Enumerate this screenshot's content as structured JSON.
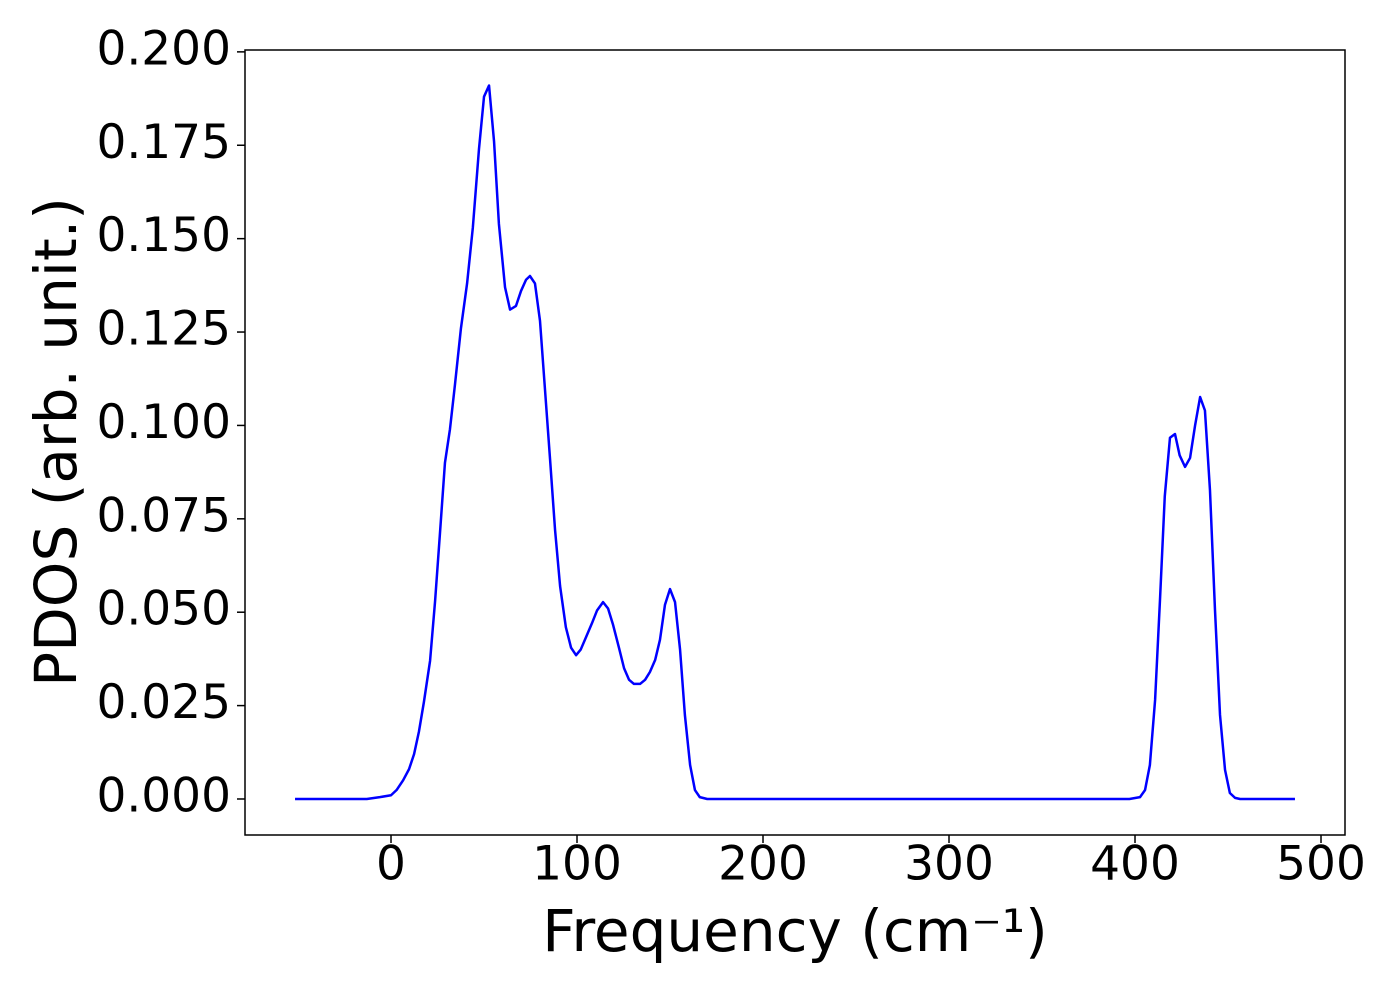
{
  "chart_data": {
    "type": "line",
    "xlabel": "Frequency (cm⁻¹)",
    "ylabel": "PDOS (arb. unit.)",
    "x": [
      -51.6,
      -13,
      -6,
      0,
      3,
      6.5,
      9.7,
      12.4,
      15,
      17.7,
      21,
      23.7,
      26.3,
      29,
      31.7,
      34.4,
      37.6,
      40.9,
      44,
      47.3,
      50,
      52.7,
      55.4,
      58,
      61.3,
      64,
      67.2,
      69.9,
      72.6,
      74.7,
      77.4,
      80.1,
      82.8,
      85.5,
      88.2,
      90.9,
      94,
      96.8,
      99.5,
      102,
      105,
      108,
      110.8,
      114,
      116.7,
      119.4,
      122.6,
      125.3,
      128,
      130.6,
      133.9,
      136.6,
      139.2,
      142,
      144.6,
      147.3,
      150,
      152.7,
      155.4,
      158,
      160.8,
      163.4,
      166,
      170,
      397,
      402.7,
      405.4,
      408,
      410.8,
      413.4,
      416,
      418.8,
      421.5,
      424,
      426.9,
      429.6,
      432.3,
      435,
      437.6,
      440.3,
      443,
      445.7,
      448.4,
      451,
      453.8,
      456.5,
      486
    ],
    "values": [
      0,
      0,
      0.0005,
      0.001,
      0.0024,
      0.005,
      0.008,
      0.012,
      0.018,
      0.026,
      0.037,
      0.053,
      0.071,
      0.09,
      0.099,
      0.111,
      0.126,
      0.138,
      0.153,
      0.174,
      0.188,
      0.191,
      0.176,
      0.154,
      0.137,
      0.131,
      0.132,
      0.136,
      0.139,
      0.14,
      0.138,
      0.128,
      0.1095,
      0.091,
      0.072,
      0.057,
      0.046,
      0.0405,
      0.0385,
      0.04,
      0.0435,
      0.047,
      0.0505,
      0.0527,
      0.051,
      0.0466,
      0.0404,
      0.035,
      0.0319,
      0.0308,
      0.0308,
      0.0319,
      0.034,
      0.0372,
      0.0426,
      0.052,
      0.0562,
      0.0527,
      0.04,
      0.0225,
      0.0091,
      0.0024,
      0.0005,
      0,
      0,
      0.0005,
      0.0024,
      0.0091,
      0.0265,
      0.053,
      0.081,
      0.0967,
      0.0977,
      0.092,
      0.0889,
      0.0913,
      0.1,
      0.1076,
      0.104,
      0.0827,
      0.0506,
      0.0225,
      0.0078,
      0.0016,
      0.0003,
      0,
      0
    ],
    "color": "#0000ff",
    "xlim": [
      -78.5,
      512.9
    ],
    "ylim": [
      -0.00964,
      0.2005
    ],
    "xticks": [
      0,
      100,
      200,
      300,
      400,
      500
    ],
    "yticks": [
      {
        "value": 0,
        "label": "0.000"
      },
      {
        "value": 0.025,
        "label": "0.025"
      },
      {
        "value": 0.05,
        "label": "0.050"
      },
      {
        "value": 0.075,
        "label": "0.075"
      },
      {
        "value": 0.1,
        "label": "0.100"
      },
      {
        "value": 0.125,
        "label": "0.125"
      },
      {
        "value": 0.15,
        "label": "0.150"
      },
      {
        "value": 0.175,
        "label": "0.175"
      },
      {
        "value": 0.2,
        "label": "0.200"
      }
    ],
    "grid": false
  }
}
